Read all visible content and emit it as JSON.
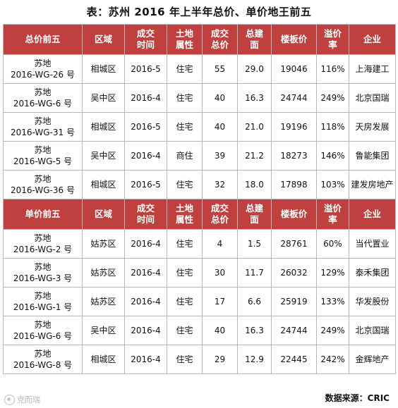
{
  "title": "表：苏州 2016 年上半年总价、单价地王前五",
  "headers": {
    "total": [
      "总价前五",
      "区域",
      "成交\n时间",
      "土地\n属性",
      "成交\n总价",
      "总建\n面",
      "楼板价",
      "溢价\n率",
      "企业"
    ],
    "unit": [
      "单价前五",
      "区域",
      "成交\n时间",
      "土地\n属性",
      "成交\n总价",
      "总建\n面",
      "楼板价",
      "溢价\n率",
      "企业"
    ]
  },
  "total_rows": [
    {
      "plot_a": "苏地",
      "plot_b": "2016-WG-26 号",
      "district": "相城区",
      "date": "2016-5",
      "type": "住宅",
      "price": "55",
      "area": "29.0",
      "floor_price": "19046",
      "premium": "116%",
      "company": "上海建工"
    },
    {
      "plot_a": "苏地",
      "plot_b": "2016-WG-6 号",
      "district": "吴中区",
      "date": "2016-4",
      "type": "住宅",
      "price": "40",
      "area": "16.3",
      "floor_price": "24744",
      "premium": "249%",
      "company": "北京国瑞"
    },
    {
      "plot_a": "苏地",
      "plot_b": "2016-WG-31 号",
      "district": "相城区",
      "date": "2016-5",
      "type": "住宅",
      "price": "40",
      "area": "21.0",
      "floor_price": "19196",
      "premium": "118%",
      "company": "天房发展"
    },
    {
      "plot_a": "苏地",
      "plot_b": "2016-WG-5 号",
      "district": "吴中区",
      "date": "2016-4",
      "type": "商住",
      "price": "39",
      "area": "21.2",
      "floor_price": "18273",
      "premium": "146%",
      "company": "鲁能集团"
    },
    {
      "plot_a": "苏地",
      "plot_b": "2016-WG-36 号",
      "district": "相城区",
      "date": "2016-5",
      "type": "住宅",
      "price": "32",
      "area": "18.0",
      "floor_price": "17898",
      "premium": "103%",
      "company": "建发房地产"
    }
  ],
  "unit_rows": [
    {
      "plot_a": "苏地",
      "plot_b": "2016-WG-2 号",
      "district": "姑苏区",
      "date": "2016-4",
      "type": "住宅",
      "price": "4",
      "area": "1.5",
      "floor_price": "28761",
      "premium": "60%",
      "company": "当代置业"
    },
    {
      "plot_a": "苏地",
      "plot_b": "2016-WG-3 号",
      "district": "姑苏区",
      "date": "2016-4",
      "type": "住宅",
      "price": "30",
      "area": "11.7",
      "floor_price": "26032",
      "premium": "129%",
      "company": "泰禾集团"
    },
    {
      "plot_a": "苏地",
      "plot_b": "2016-WG-1 号",
      "district": "姑苏区",
      "date": "2016-4",
      "type": "住宅",
      "price": "17",
      "area": "6.6",
      "floor_price": "25919",
      "premium": "133%",
      "company": "华发股份"
    },
    {
      "plot_a": "苏地",
      "plot_b": "2016-WG-6 号",
      "district": "吴中区",
      "date": "2016-4",
      "type": "住宅",
      "price": "40",
      "area": "16.3",
      "floor_price": "24744",
      "premium": "249%",
      "company": "北京国瑞"
    },
    {
      "plot_a": "苏地",
      "plot_b": "2016-WG-8 号",
      "district": "相城区",
      "date": "2016-4",
      "type": "住宅",
      "price": "29",
      "area": "12.9",
      "floor_price": "22445",
      "premium": "242%",
      "company": "金辉地产"
    }
  ],
  "footer": {
    "source": "数据来源：CRIC",
    "watermark": "克而瑞"
  }
}
